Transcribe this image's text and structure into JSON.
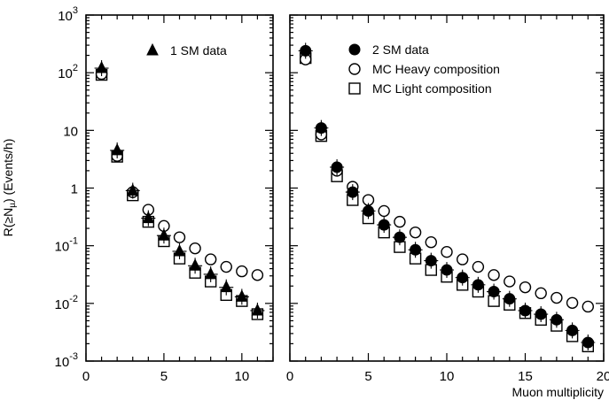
{
  "chart_data": [
    {
      "type": "scatter",
      "panel": "left",
      "title": "",
      "xlabel": "",
      "ylabel": "R(≥N_µ) (Events/h)",
      "ylabel_main": "R(≥N",
      "ylabel_sub": "µ",
      "ylabel_tail": ") (Events/h)",
      "x_ticks": [
        "0",
        "5",
        "10"
      ],
      "x_tick_values": [
        0,
        5,
        10
      ],
      "y_ticks": [
        "10",
        "10",
        "10",
        "1",
        "10",
        "10",
        "10"
      ],
      "y_tick_sup": [
        "3",
        "2",
        "",
        "",
        "-1",
        "-2",
        "-3"
      ],
      "y_tick_values": [
        1000,
        100,
        10,
        1,
        0.1,
        0.01,
        0.001
      ],
      "xlim": [
        0,
        12
      ],
      "ylim": [
        0.001,
        1000
      ],
      "yscale": "log",
      "grid": false,
      "legend_position": "top-right",
      "series": [
        {
          "name": "1 SM data",
          "marker": "filled-triangle",
          "x": [
            1,
            2,
            3,
            4,
            5,
            6,
            7,
            8,
            9,
            10,
            11
          ],
          "y": [
            120,
            4.5,
            0.9,
            0.3,
            0.15,
            0.08,
            0.045,
            0.032,
            0.019,
            0.013,
            0.0075
          ]
        },
        {
          "name": "",
          "marker": "open-circle",
          "x": [
            1,
            2,
            3,
            4,
            5,
            6,
            7,
            8,
            9,
            10,
            11
          ],
          "y": [
            95,
            3.6,
            0.85,
            0.42,
            0.22,
            0.14,
            0.09,
            0.058,
            0.043,
            0.036,
            0.031
          ]
        },
        {
          "name": "",
          "marker": "open-square",
          "x": [
            1,
            2,
            3,
            4,
            5,
            6,
            7,
            8,
            9,
            10,
            11
          ],
          "y": [
            92,
            3.5,
            0.75,
            0.26,
            0.12,
            0.06,
            0.034,
            0.024,
            0.014,
            0.011,
            0.0065
          ]
        }
      ]
    },
    {
      "type": "scatter",
      "panel": "right",
      "title": "",
      "xlabel": "Muon multiplicity",
      "ylabel": "",
      "x_ticks": [
        "0",
        "5",
        "10",
        "15",
        "20"
      ],
      "x_tick_values": [
        0,
        5,
        10,
        15,
        20
      ],
      "xlim": [
        0,
        20
      ],
      "ylim": [
        0.001,
        1000
      ],
      "yscale": "log",
      "grid": false,
      "legend_position": "top-right",
      "series": [
        {
          "name": "2 SM data",
          "marker": "filled-circle",
          "x": [
            1,
            2,
            3,
            4,
            5,
            6,
            7,
            8,
            9,
            10,
            11,
            12,
            13,
            14,
            15,
            16,
            17,
            18,
            19
          ],
          "y": [
            240,
            11,
            2.3,
            0.85,
            0.4,
            0.23,
            0.14,
            0.085,
            0.055,
            0.038,
            0.028,
            0.021,
            0.016,
            0.012,
            0.0075,
            0.0065,
            0.0052,
            0.0034,
            0.0021
          ]
        },
        {
          "name": "MC Heavy composition",
          "marker": "open-circle",
          "x": [
            1,
            2,
            3,
            4,
            5,
            6,
            7,
            8,
            9,
            10,
            11,
            12,
            13,
            14,
            15,
            16,
            17,
            18,
            19
          ],
          "y": [
            170,
            8.5,
            2.0,
            1.05,
            0.62,
            0.4,
            0.26,
            0.17,
            0.115,
            0.078,
            0.058,
            0.043,
            0.031,
            0.024,
            0.019,
            0.015,
            0.0125,
            0.0102,
            0.0088
          ]
        },
        {
          "name": "MC Light composition",
          "marker": "open-square",
          "x": [
            1,
            2,
            3,
            4,
            5,
            6,
            7,
            8,
            9,
            10,
            11,
            12,
            13,
            14,
            15,
            16,
            17,
            18,
            19
          ],
          "y": [
            180,
            8.0,
            1.6,
            0.62,
            0.3,
            0.17,
            0.095,
            0.06,
            0.038,
            0.029,
            0.021,
            0.016,
            0.011,
            0.0095,
            0.0068,
            0.0052,
            0.0041,
            0.0027,
            0.0018
          ]
        }
      ]
    }
  ]
}
